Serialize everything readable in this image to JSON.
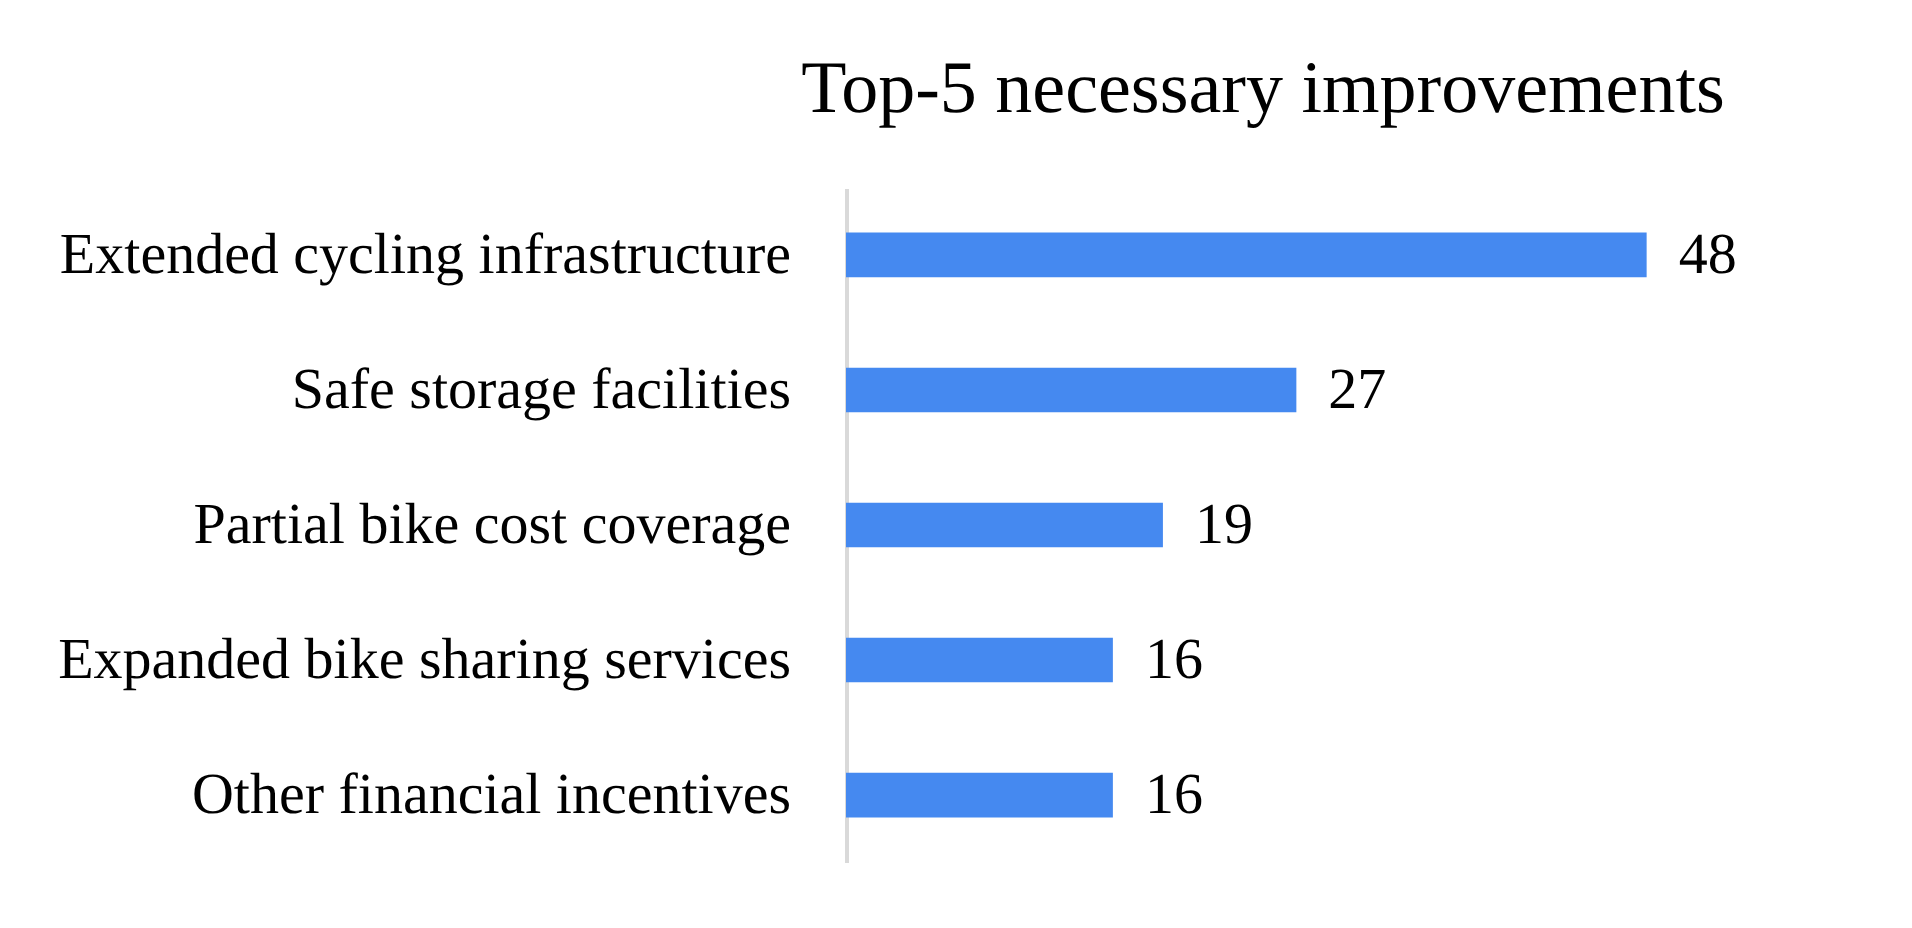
{
  "chart_data": {
    "type": "bar",
    "orientation": "horizontal",
    "title": "Top-5 necessary improvements",
    "categories": [
      "Extended cycling infrastructure",
      "Safe storage facilities",
      "Partial bike cost coverage",
      "Expanded bike sharing services",
      "Other financial incentives"
    ],
    "values": [
      48,
      27,
      19,
      16,
      16
    ],
    "color": "#4589f0",
    "data_labels": true,
    "grid": false
  }
}
